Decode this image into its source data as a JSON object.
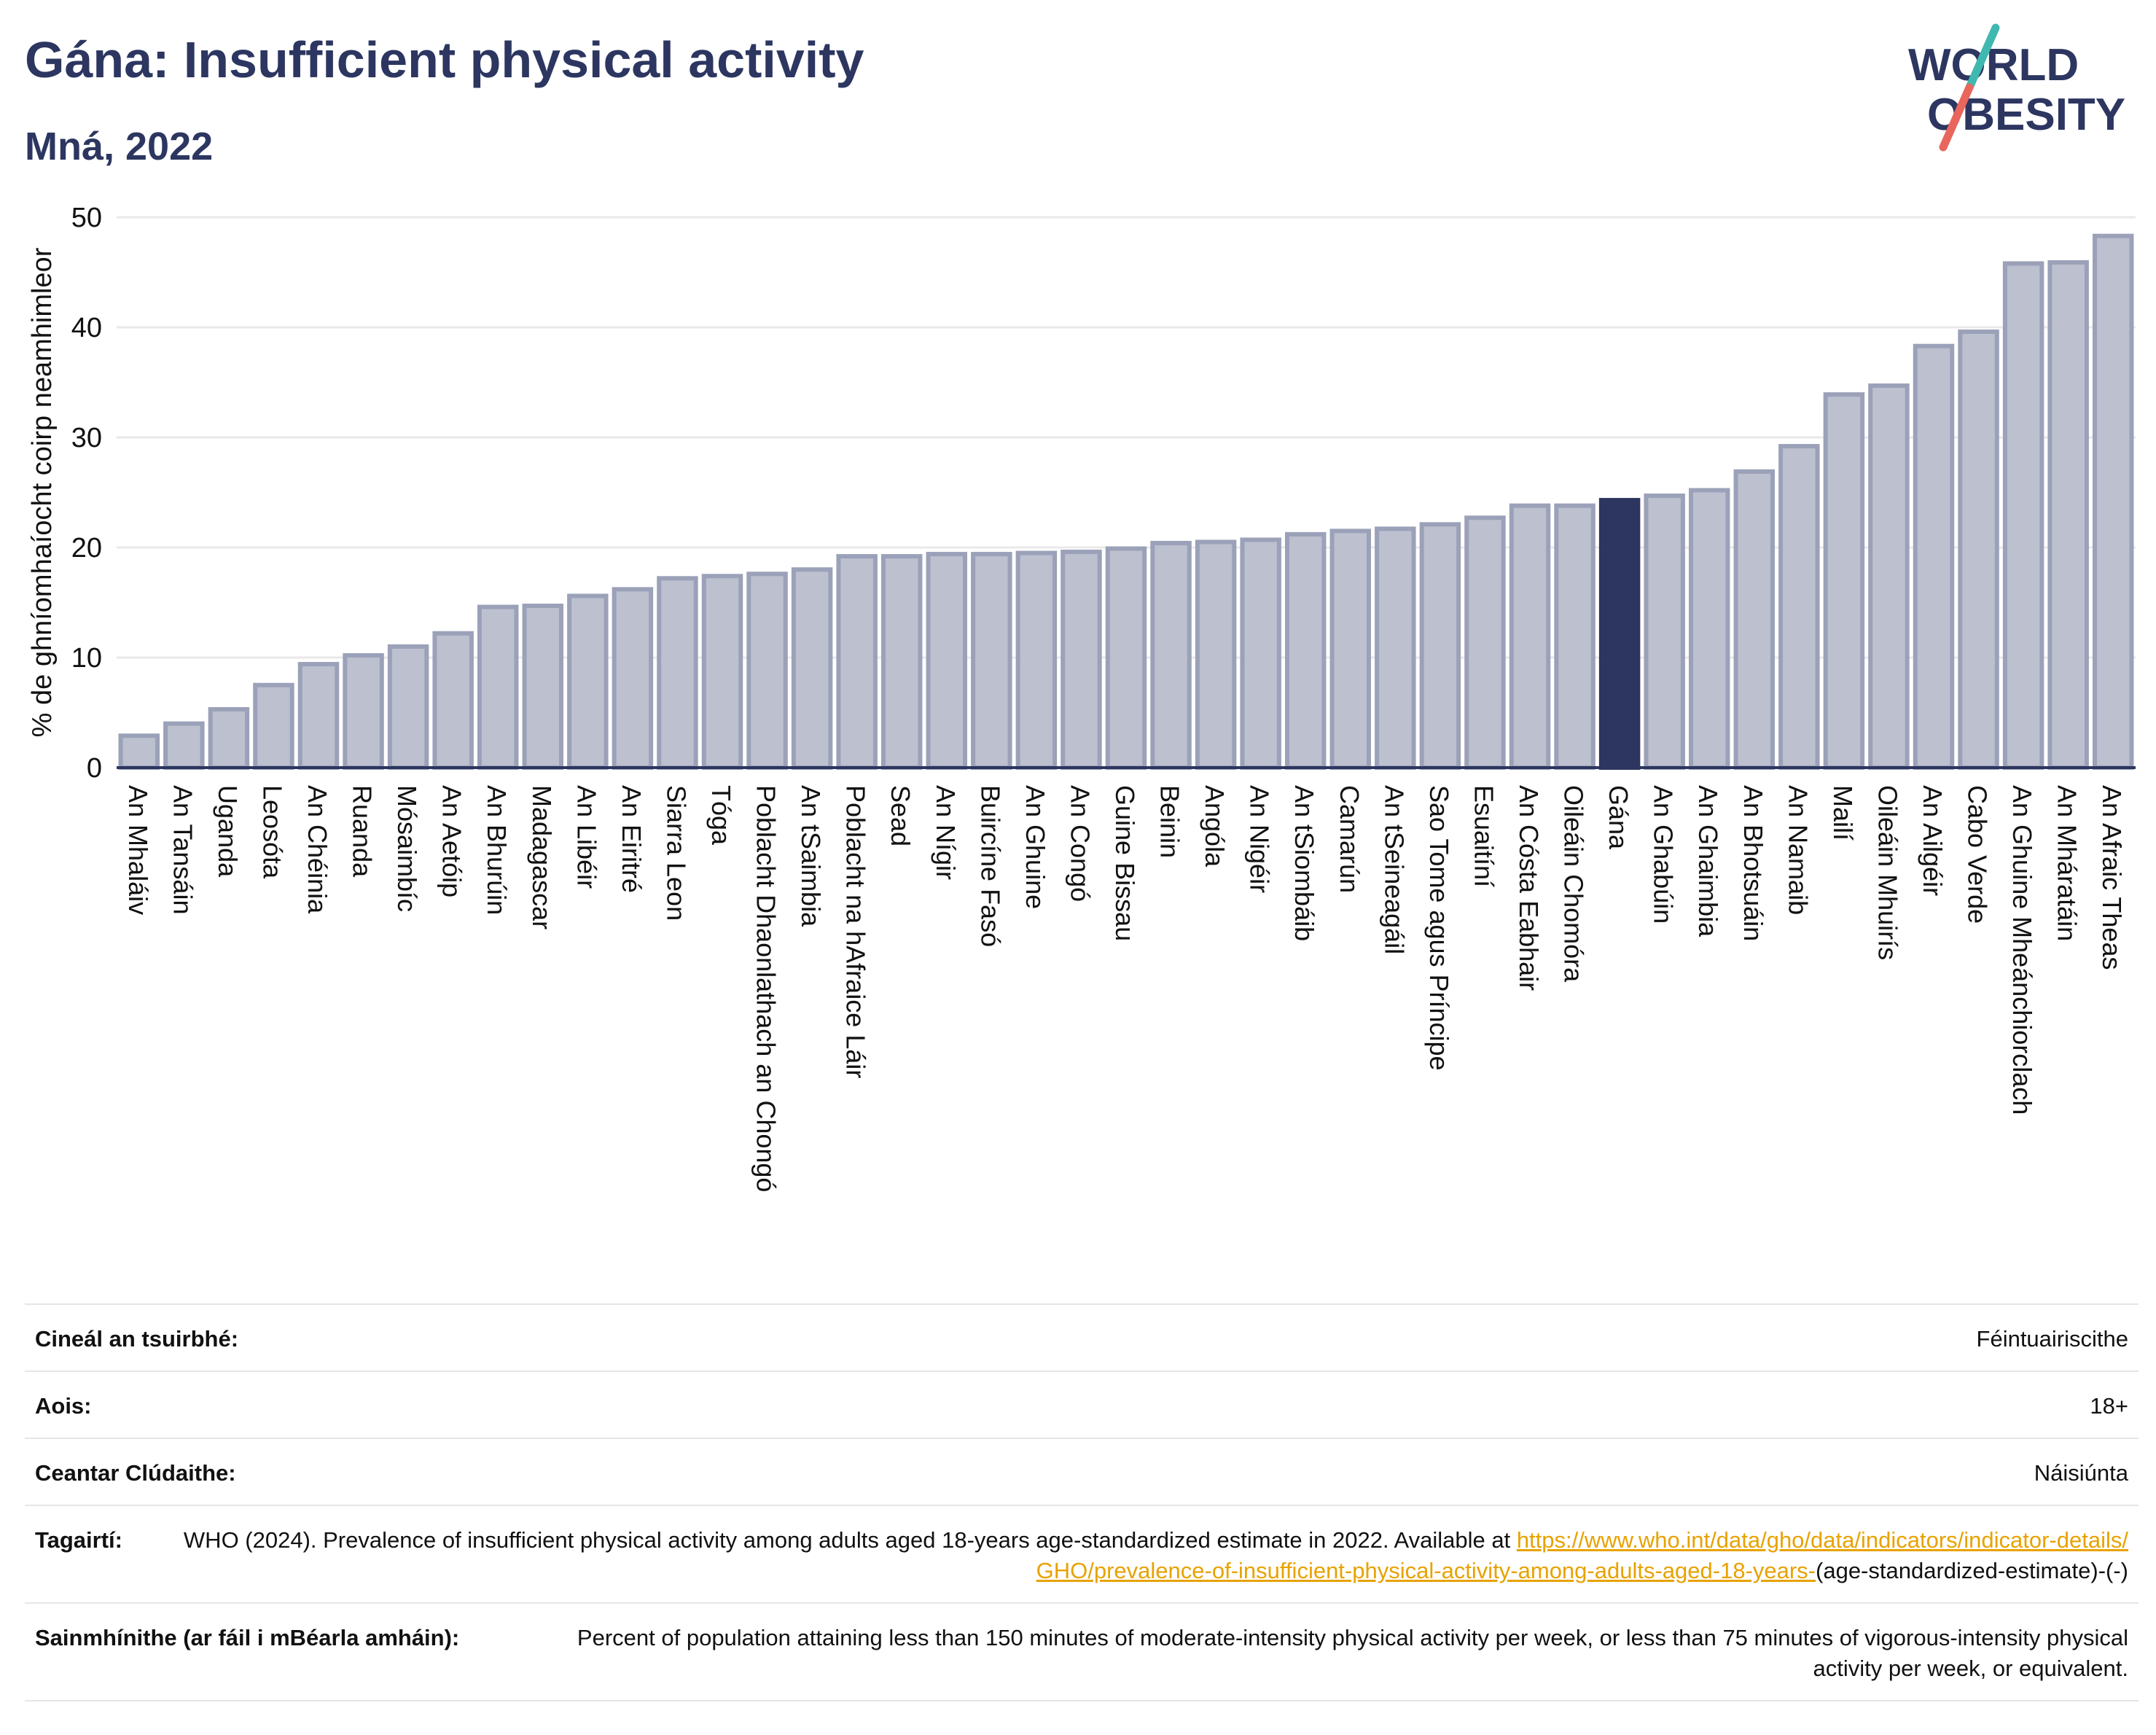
{
  "header": {
    "title": "Gána: Insufficient physical activity",
    "subtitle": "Mná, 2022"
  },
  "logo": {
    "line1": "WORLD",
    "line2": "OBESITY",
    "slash_colors": [
      "#3fb8b0",
      "#e8665c"
    ],
    "text_color": "#2c3660"
  },
  "colors": {
    "bar": "#bcc0cf",
    "bar_border": "#9ba1b8",
    "highlight": "#2c3660",
    "grid": "#e9e9e9",
    "axis": "#2c3660"
  },
  "chart_data": {
    "type": "bar",
    "ylabel": "% de ghníomhaíocht coirp neamhimleor",
    "ylim": [
      0,
      50
    ],
    "yticks": [
      0,
      10,
      20,
      30,
      40,
      50
    ],
    "grid": true,
    "highlight": "Gána",
    "categories": [
      "An Mhaláiv",
      "An Tansáin",
      "Uganda",
      "Leosóta",
      "An Chéinia",
      "Ruanda",
      "Mósaimbíc",
      "An Aetóip",
      "An Bhurúin",
      "Madagascar",
      "An Libéir",
      "An Eiritré",
      "Siarra Leon",
      "Tóga",
      "Poblacht Dhaonlathach an Chongó",
      "An tSaimbia",
      "Poblacht na hAfraice Láir",
      "Sead",
      "An Nígir",
      "Buircíne Fasó",
      "An Ghuine",
      "An Congó",
      "Guine Bissau",
      "Beinin",
      "Angóla",
      "An Nigéir",
      "An tSiombáib",
      "Camarún",
      "An tSeineagáil",
      "Sao Tome agus Príncipe",
      "Esuaitíní",
      "An Cósta Eabhair",
      "Oileáin Chomóra",
      "Gána",
      "An Ghabúin",
      "An Ghaimbia",
      "An Bhotsuáin",
      "An Namaib",
      "Mailí",
      "Oileáin Mhuirís",
      "An Ailgéir",
      "Cabo Verde",
      "An Ghuine Mheánchiorclach",
      "An Mháratáin",
      "An Afraic Theas"
    ],
    "values": [
      2.9,
      4.0,
      5.3,
      7.5,
      9.4,
      10.2,
      11.0,
      12.2,
      14.6,
      14.7,
      15.6,
      16.2,
      17.2,
      17.4,
      17.6,
      18.0,
      19.2,
      19.2,
      19.4,
      19.4,
      19.5,
      19.6,
      19.9,
      20.4,
      20.5,
      20.7,
      21.2,
      21.5,
      21.7,
      22.1,
      22.7,
      23.8,
      23.8,
      24.3,
      24.7,
      25.2,
      26.9,
      29.2,
      33.9,
      34.7,
      38.3,
      39.6,
      45.8,
      45.9,
      48.3
    ]
  },
  "meta": {
    "rows": [
      {
        "label": "Cineál an tsuirbhé:",
        "value": "Féintuairiscithe"
      },
      {
        "label": "Aois:",
        "value": "18+"
      },
      {
        "label": "Ceantar Clúdaithe:",
        "value": "Náisiúnta"
      }
    ],
    "reference": {
      "label": "Tagairtí:",
      "text": "WHO (2024). Prevalence of insufficient physical activity among adults aged 18-years age-standardized estimate in 2022. Available at",
      "link": "https://www.who.int/data/gho/data/indicators/indicator-details/GHO/prevalence-of-insufficient-physical-activity-among-adults-aged-18-years-",
      "suffix": "(age-standardized-estimate)-(-)"
    },
    "definition": {
      "label": "Sainmhínithe (ar fáil i mBéarla amháin):",
      "value": "Percent of population attaining less than 150 minutes of moderate-intensity physical activity per week, or less than 75 minutes of vigorous-intensity physical activity per week, or equivalent."
    }
  }
}
